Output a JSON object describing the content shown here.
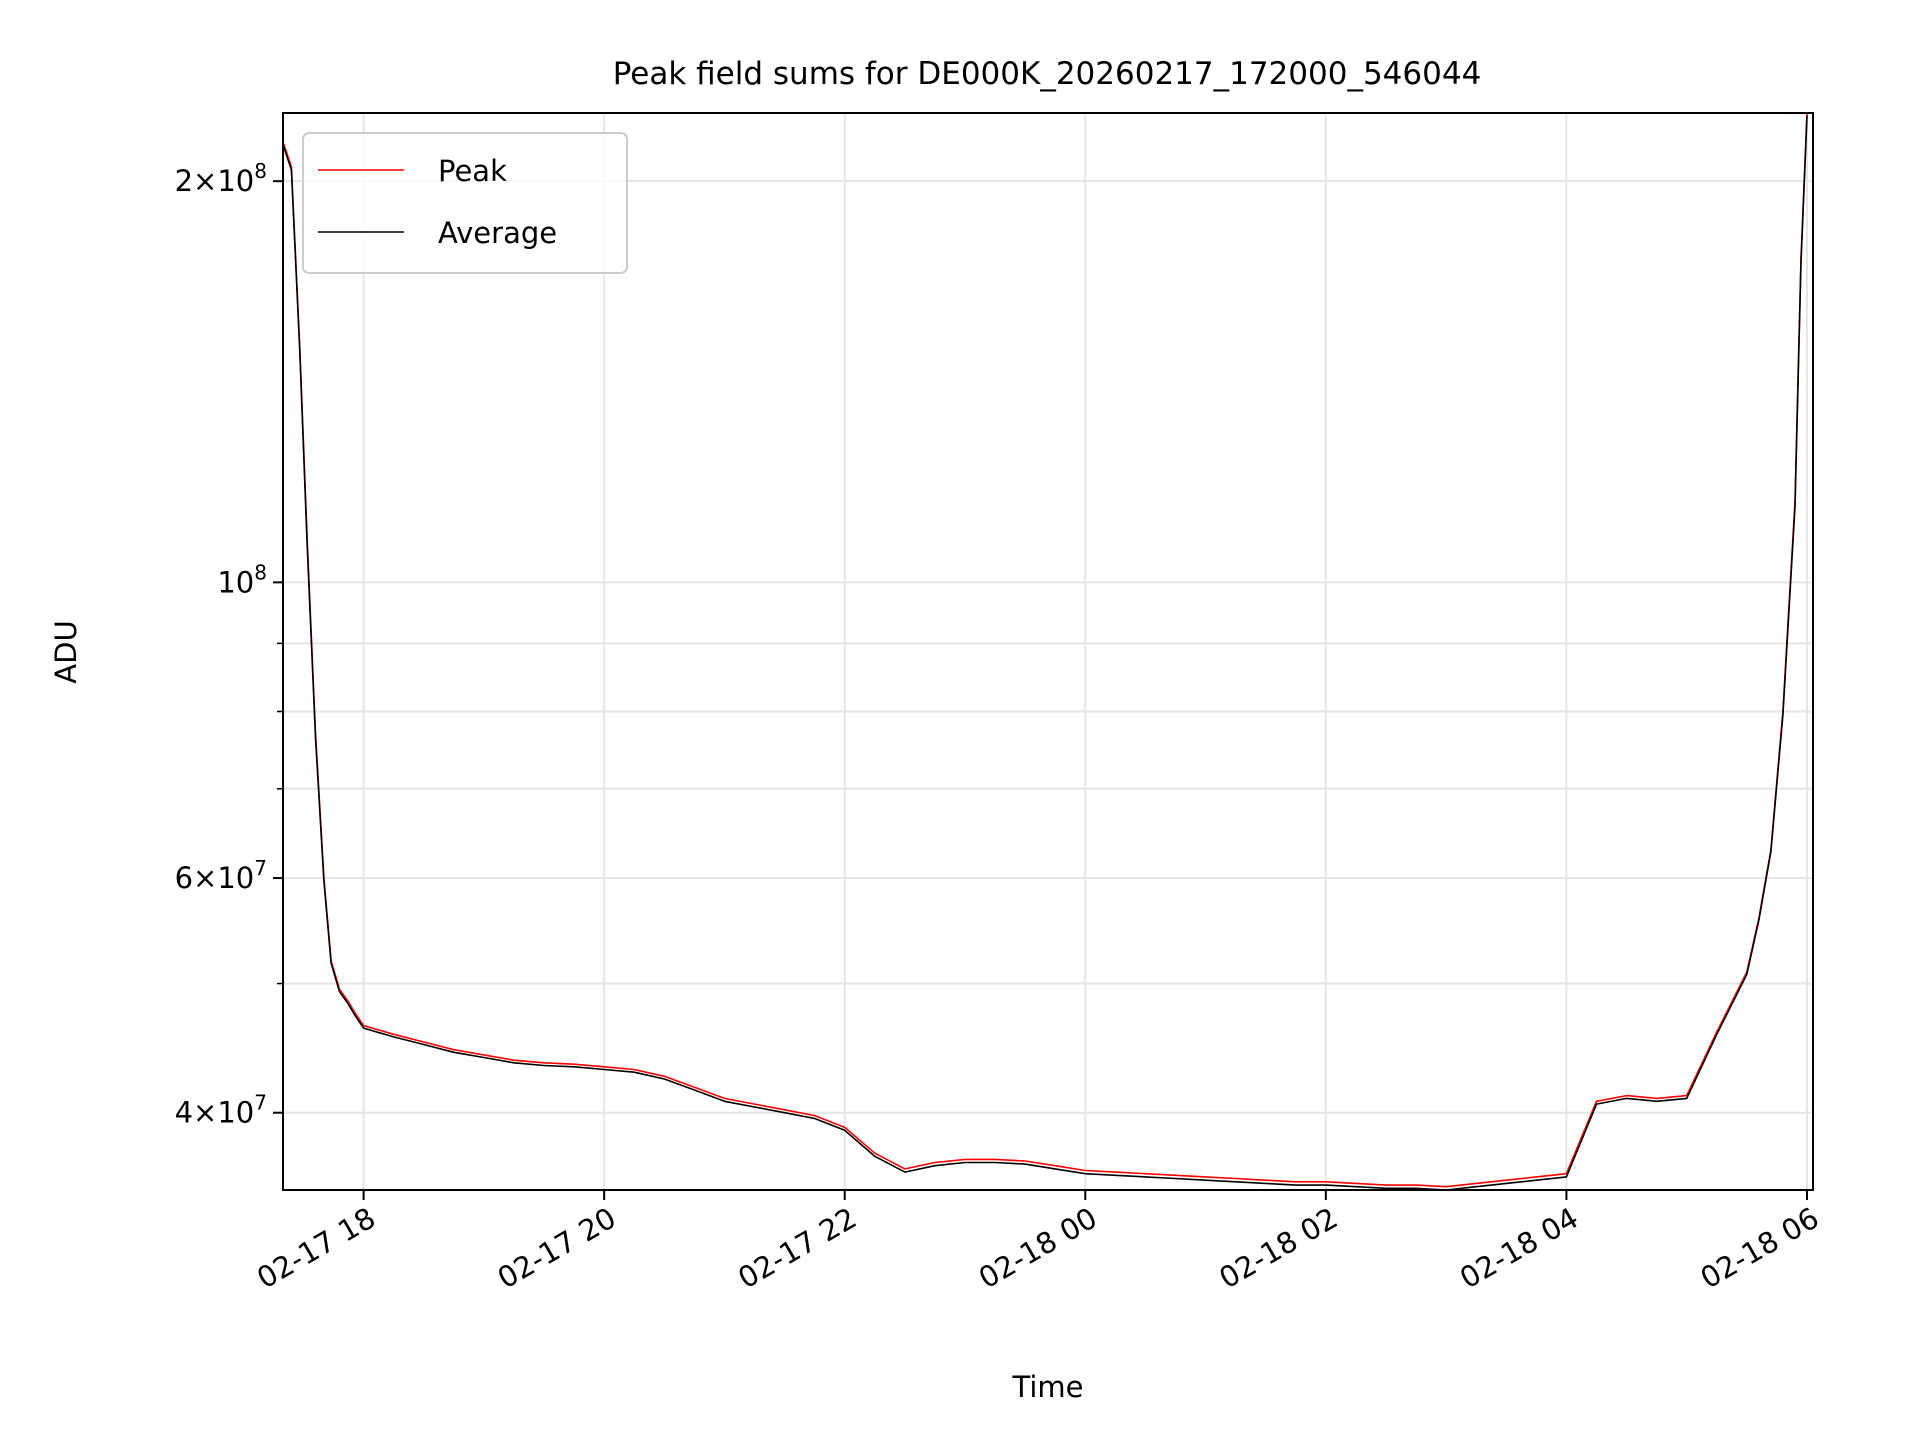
{
  "chart_data": {
    "type": "line",
    "title": "Peak field sums for DE000K_20260217_172000_546044",
    "xlabel": "Time",
    "ylabel": "ADU",
    "yscale": "log",
    "grid": true,
    "legend_placement": "top-left",
    "x_tick_labels": [
      "02-17 18",
      "02-17 20",
      "02-17 22",
      "02-18 00",
      "02-18 02",
      "02-18 04",
      "02-18 06"
    ],
    "x_ticks_hours": [
      18,
      20,
      22,
      24,
      26,
      28,
      30
    ],
    "xlim_hours": [
      17.33,
      30.05
    ],
    "y_major_ticks": [
      {
        "value": 200000000,
        "mant": "2",
        "exp": "8"
      },
      {
        "value": 100000000,
        "mant": "",
        "exp": "8"
      },
      {
        "value": 60000000,
        "mant": "6",
        "exp": "7"
      },
      {
        "value": 40000000,
        "mant": "4",
        "exp": "7"
      }
    ],
    "y_minor_ticks": [
      50000000,
      70000000,
      80000000,
      90000000
    ],
    "ylim": [
      35000000,
      225000000
    ],
    "series": [
      {
        "name": "Peak",
        "color": "#ff0000",
        "x": [
          17.33,
          17.4,
          17.47,
          17.53,
          17.6,
          17.67,
          17.73,
          17.8,
          17.87,
          17.93,
          18.0,
          18.25,
          18.5,
          18.75,
          19.0,
          19.25,
          19.5,
          19.75,
          20.0,
          20.25,
          20.5,
          20.75,
          21.0,
          21.25,
          21.5,
          21.75,
          22.0,
          22.25,
          22.5,
          22.75,
          23.0,
          23.25,
          23.5,
          23.75,
          24.0,
          24.25,
          24.5,
          24.75,
          25.0,
          25.25,
          25.5,
          25.75,
          26.0,
          26.25,
          26.5,
          26.75,
          27.0,
          27.25,
          27.5,
          27.75,
          28.0,
          28.25,
          28.5,
          28.75,
          29.0,
          29.25,
          29.5,
          29.6,
          29.7,
          29.8,
          29.9,
          29.95,
          30.0
        ],
        "y": [
          214000000,
          205000000,
          150000000,
          108000000,
          77000000,
          60000000,
          52000000,
          49500000,
          48500000,
          47500000,
          46500000,
          45800000,
          45200000,
          44600000,
          44200000,
          43800000,
          43600000,
          43500000,
          43300000,
          43100000,
          42600000,
          41800000,
          41000000,
          40600000,
          40200000,
          39800000,
          39000000,
          37300000,
          36300000,
          36700000,
          36900000,
          36900000,
          36800000,
          36500000,
          36200000,
          36100000,
          36000000,
          35900000,
          35800000,
          35700000,
          35600000,
          35500000,
          35500000,
          35400000,
          35300000,
          35300000,
          35200000,
          35400000,
          35600000,
          35800000,
          36000000,
          40800000,
          41200000,
          41000000,
          41200000,
          46000000,
          51000000,
          56000000,
          63000000,
          80000000,
          115000000,
          175000000,
          225000000
        ]
      },
      {
        "name": "Average",
        "color": "#000000",
        "x": [
          17.33,
          17.4,
          17.47,
          17.53,
          17.6,
          17.67,
          17.73,
          17.8,
          17.87,
          17.93,
          18.0,
          18.25,
          18.5,
          18.75,
          19.0,
          19.25,
          19.5,
          19.75,
          20.0,
          20.25,
          20.5,
          20.75,
          21.0,
          21.25,
          21.5,
          21.75,
          22.0,
          22.25,
          22.5,
          22.75,
          23.0,
          23.25,
          23.5,
          23.75,
          24.0,
          24.25,
          24.5,
          24.75,
          25.0,
          25.25,
          25.5,
          25.75,
          26.0,
          26.25,
          26.5,
          26.75,
          27.0,
          27.25,
          27.5,
          27.75,
          28.0,
          28.25,
          28.5,
          28.75,
          29.0,
          29.25,
          29.5,
          29.6,
          29.7,
          29.8,
          29.9,
          29.95,
          30.0
        ],
        "y": [
          213000000,
          204000000,
          149000000,
          107000000,
          76500000,
          59700000,
          51800000,
          49300000,
          48300000,
          47300000,
          46300000,
          45600000,
          45000000,
          44400000,
          44000000,
          43600000,
          43400000,
          43300000,
          43100000,
          42900000,
          42400000,
          41600000,
          40800000,
          40400000,
          40000000,
          39600000,
          38800000,
          37100000,
          36100000,
          36500000,
          36700000,
          36700000,
          36600000,
          36300000,
          36000000,
          35900000,
          35800000,
          35700000,
          35600000,
          35500000,
          35400000,
          35300000,
          35300000,
          35200000,
          35100000,
          35100000,
          35000000,
          35200000,
          35400000,
          35600000,
          35800000,
          40600000,
          41000000,
          40800000,
          41000000,
          45800000,
          50800000,
          55800000,
          62800000,
          79500000,
          114000000,
          174000000,
          224000000
        ]
      }
    ]
  }
}
